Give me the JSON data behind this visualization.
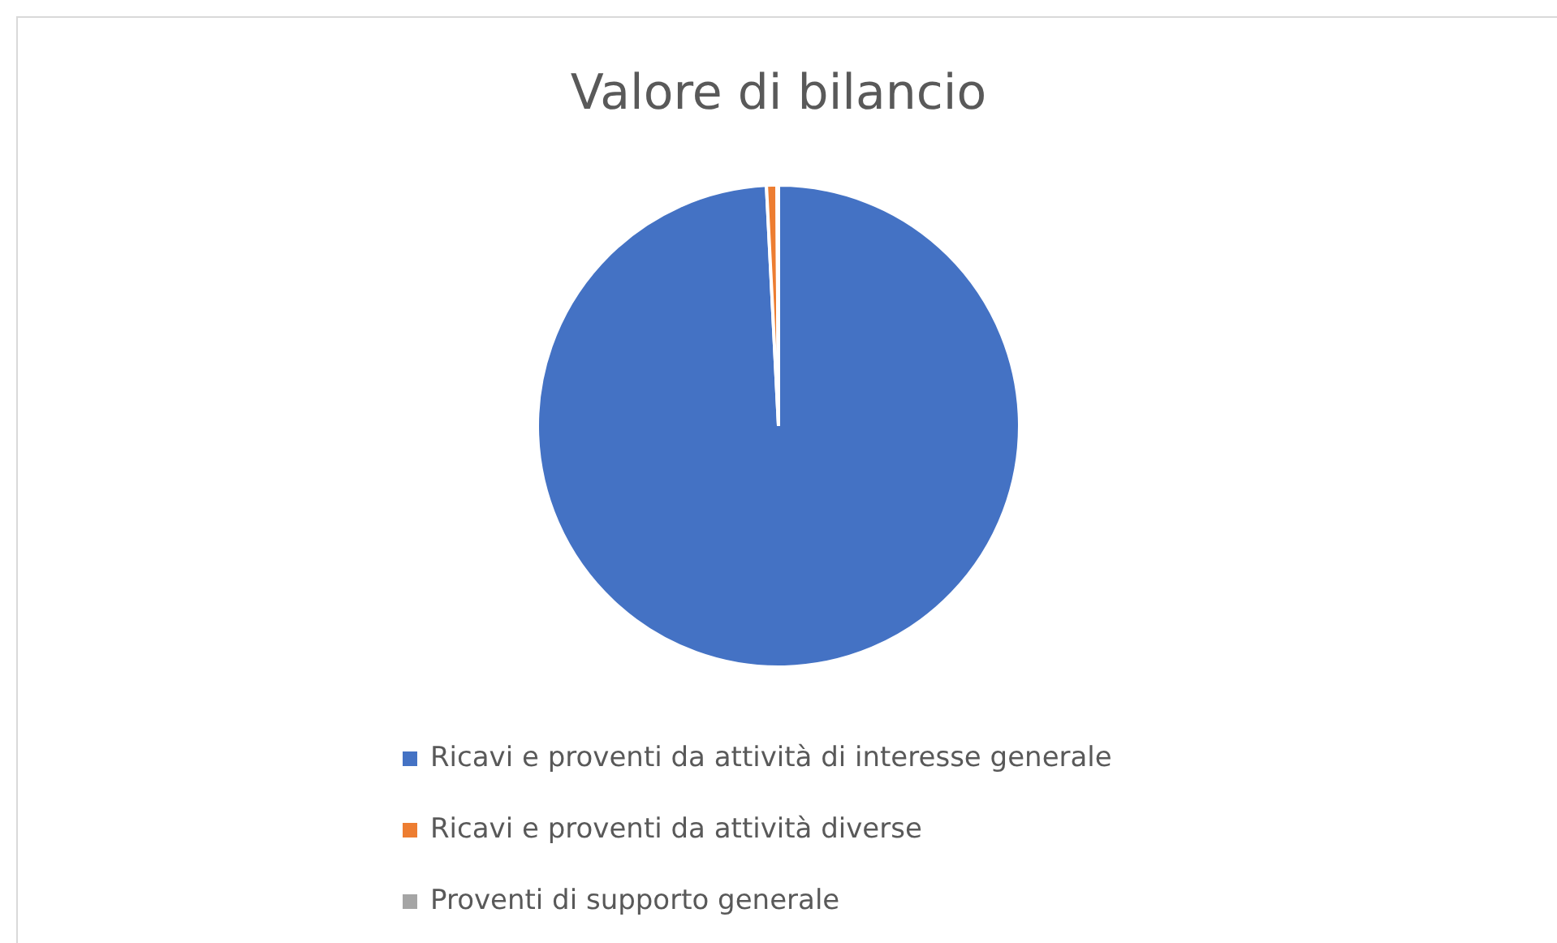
{
  "chart_data": {
    "type": "pie",
    "title": "Valore di bilancio",
    "categories": [
      "Ricavi e proventi da attività di interesse generale",
      "Ricavi e proventi da attività diverse",
      "Proventi di supporto generale"
    ],
    "values": [
      99.2,
      0.7,
      0.1
    ],
    "colors": [
      "#4472c4",
      "#ed7d31",
      "#a5a5a5"
    ],
    "legend": "bottom"
  }
}
